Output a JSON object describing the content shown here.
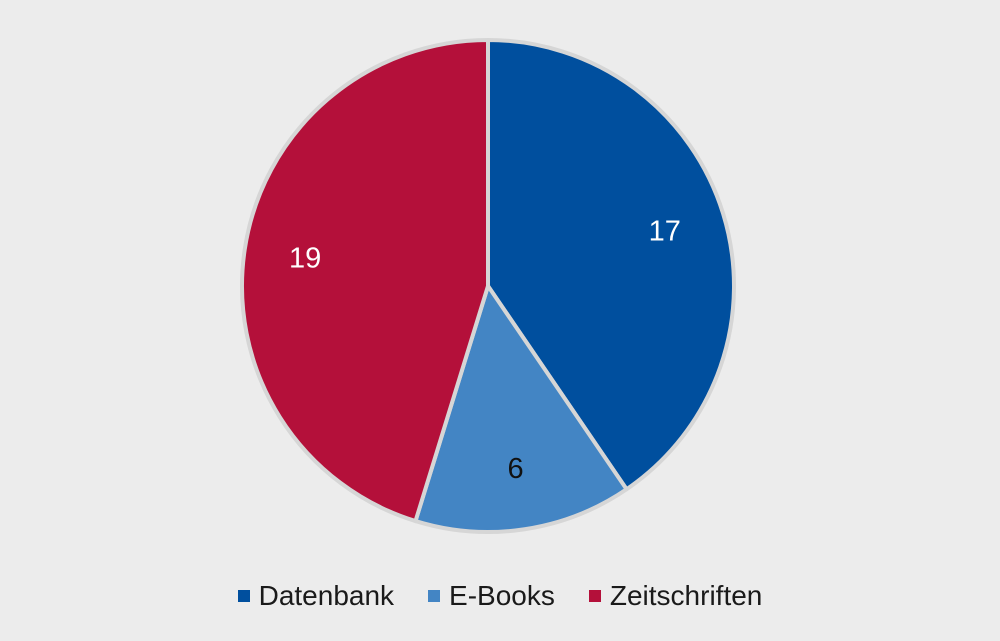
{
  "chart_data": {
    "type": "pie",
    "title": "",
    "slices": [
      {
        "name": "Datenbank",
        "value": 17,
        "label": "17",
        "color": "#004f9e",
        "label_color": "#ffffff"
      },
      {
        "name": "E-Books",
        "value": 6,
        "label": "6",
        "color": "#4385c4",
        "label_color": "#111111"
      },
      {
        "name": "Zeitschriften",
        "value": 19,
        "label": "19",
        "color": "#b4103a",
        "label_color": "#ffffff"
      }
    ],
    "start_angle_deg": 0,
    "direction": "clockwise",
    "legend_position": "bottom",
    "colors": {
      "background": "#ececec",
      "slice_border": "#d6d6d6"
    }
  }
}
